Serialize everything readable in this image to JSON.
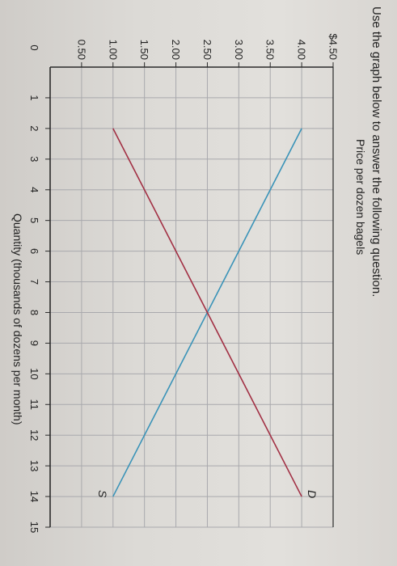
{
  "question": "Use the graph below to answer the following question.",
  "chart_data": {
    "type": "line",
    "ylabel": "Price per dozen bagels",
    "xlabel": "Quantity (thousands of dozens per month)",
    "x_ticks": [
      "0",
      "1",
      "2",
      "3",
      "4",
      "5",
      "6",
      "7",
      "8",
      "9",
      "10",
      "11",
      "12",
      "13",
      "14",
      "15"
    ],
    "y_ticks": [
      "0.50",
      "1.00",
      "1.50",
      "2.00",
      "2.50",
      "3.00",
      "3.50",
      "4.00",
      "$4.50"
    ],
    "y_tick_values": [
      0.5,
      1.0,
      1.5,
      2.0,
      2.5,
      3.0,
      3.5,
      4.0,
      4.5
    ],
    "xlim": [
      0,
      15
    ],
    "ylim": [
      0,
      4.5
    ],
    "grid": true,
    "series": [
      {
        "name": "S",
        "color": "#3a93b8",
        "points": [
          [
            2,
            4.0
          ],
          [
            14,
            1.0
          ]
        ]
      },
      {
        "name": "D",
        "color": "#a23044",
        "points": [
          [
            2,
            1.0
          ],
          [
            14,
            4.0
          ]
        ]
      }
    ]
  }
}
